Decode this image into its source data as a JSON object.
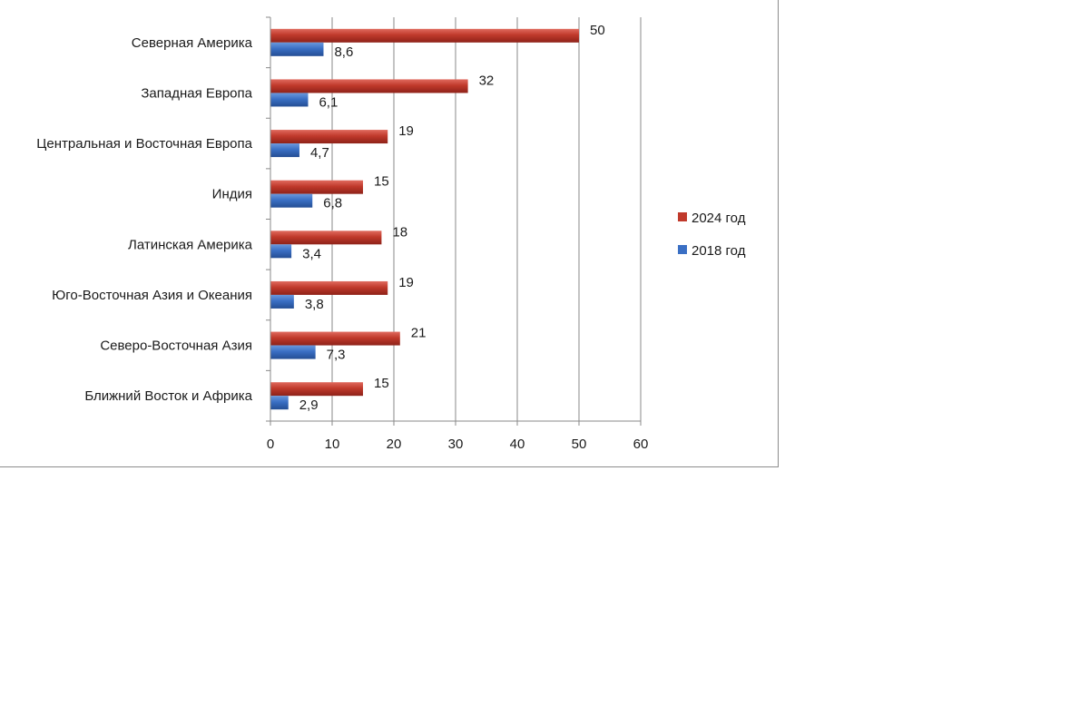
{
  "chart_data": {
    "type": "bar",
    "orientation": "horizontal",
    "categories": [
      "Северная  Америка",
      "Западная Европа",
      "Центральная  и Восточная Европа",
      "Индия",
      "Латинская Америка",
      "Юго-Восточная Азия и Океания",
      "Северо-Восточная  Азия",
      "Ближний  Восток и Африка"
    ],
    "series": [
      {
        "name": "2024 год",
        "color": "#c0392b",
        "values": [
          50,
          32,
          19,
          15,
          18,
          19,
          21,
          15
        ],
        "labels": [
          "50",
          "32",
          "19",
          "15",
          "18",
          "19",
          "21",
          "15"
        ]
      },
      {
        "name": "2018 год",
        "color": "#3a6fc4",
        "values": [
          8.6,
          6.1,
          4.7,
          6.8,
          3.4,
          3.8,
          7.3,
          2.9
        ],
        "labels": [
          "8,6",
          "6,1",
          "4,7",
          "6,8",
          "3,4",
          "3,8",
          "7,3",
          "2,9"
        ]
      }
    ],
    "xlim": [
      0,
      60
    ],
    "xticks": [
      0,
      10,
      20,
      30,
      40,
      50,
      60
    ],
    "grid": "vertical",
    "legend_position": "right",
    "title": "",
    "xlabel": "",
    "ylabel": ""
  }
}
